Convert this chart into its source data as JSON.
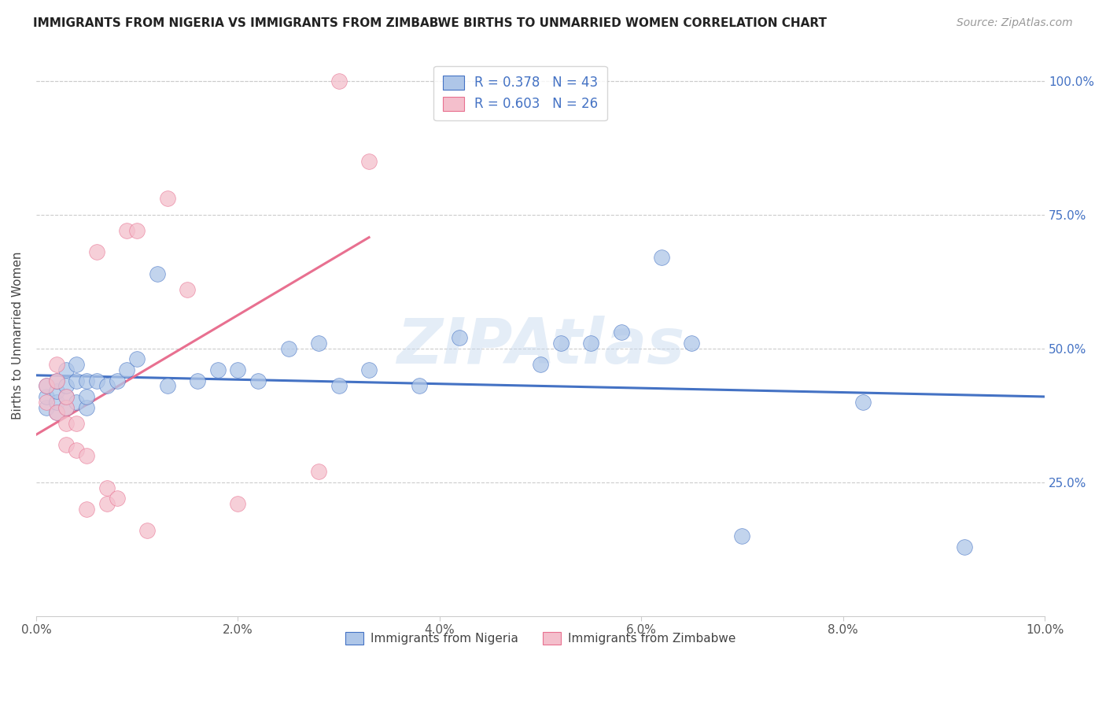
{
  "title": "IMMIGRANTS FROM NIGERIA VS IMMIGRANTS FROM ZIMBABWE BIRTHS TO UNMARRIED WOMEN CORRELATION CHART",
  "source": "Source: ZipAtlas.com",
  "ylabel": "Births to Unmarried Women",
  "x_min": 0.0,
  "x_max": 0.1,
  "y_min": 0.0,
  "y_max": 1.05,
  "legend_nigeria": "Immigrants from Nigeria",
  "legend_zimbabwe": "Immigrants from Zimbabwe",
  "r_nigeria": "0.378",
  "n_nigeria": "43",
  "r_zimbabwe": "0.603",
  "n_zimbabwe": "26",
  "color_nigeria": "#aec6e8",
  "color_zimbabwe": "#f4bfcc",
  "line_color_nigeria": "#4472c4",
  "line_color_zimbabwe": "#e87090",
  "nigeria_x": [
    0.001,
    0.001,
    0.001,
    0.002,
    0.002,
    0.002,
    0.002,
    0.003,
    0.003,
    0.003,
    0.003,
    0.004,
    0.004,
    0.004,
    0.005,
    0.005,
    0.005,
    0.006,
    0.007,
    0.008,
    0.009,
    0.01,
    0.012,
    0.013,
    0.016,
    0.018,
    0.02,
    0.022,
    0.025,
    0.028,
    0.03,
    0.033,
    0.038,
    0.042,
    0.05,
    0.052,
    0.055,
    0.058,
    0.062,
    0.065,
    0.07,
    0.082,
    0.092
  ],
  "nigeria_y": [
    0.39,
    0.41,
    0.43,
    0.38,
    0.4,
    0.42,
    0.44,
    0.39,
    0.41,
    0.43,
    0.46,
    0.4,
    0.44,
    0.47,
    0.39,
    0.41,
    0.44,
    0.44,
    0.43,
    0.44,
    0.46,
    0.48,
    0.64,
    0.43,
    0.44,
    0.46,
    0.46,
    0.44,
    0.5,
    0.51,
    0.43,
    0.46,
    0.43,
    0.52,
    0.47,
    0.51,
    0.51,
    0.53,
    0.67,
    0.51,
    0.15,
    0.4,
    0.13
  ],
  "zimbabwe_x": [
    0.001,
    0.001,
    0.002,
    0.002,
    0.002,
    0.003,
    0.003,
    0.003,
    0.003,
    0.004,
    0.004,
    0.005,
    0.005,
    0.006,
    0.007,
    0.007,
    0.008,
    0.009,
    0.01,
    0.011,
    0.013,
    0.015,
    0.02,
    0.028,
    0.03,
    0.033
  ],
  "zimbabwe_y": [
    0.4,
    0.43,
    0.38,
    0.44,
    0.47,
    0.39,
    0.41,
    0.32,
    0.36,
    0.31,
    0.36,
    0.3,
    0.2,
    0.68,
    0.21,
    0.24,
    0.22,
    0.72,
    0.72,
    0.16,
    0.78,
    0.61,
    0.21,
    0.27,
    1.0,
    0.85
  ],
  "watermark": "ZIPAtlas",
  "background_color": "#ffffff",
  "title_fontsize": 11,
  "source_fontsize": 10,
  "tick_fontsize": 11,
  "ylabel_fontsize": 11
}
